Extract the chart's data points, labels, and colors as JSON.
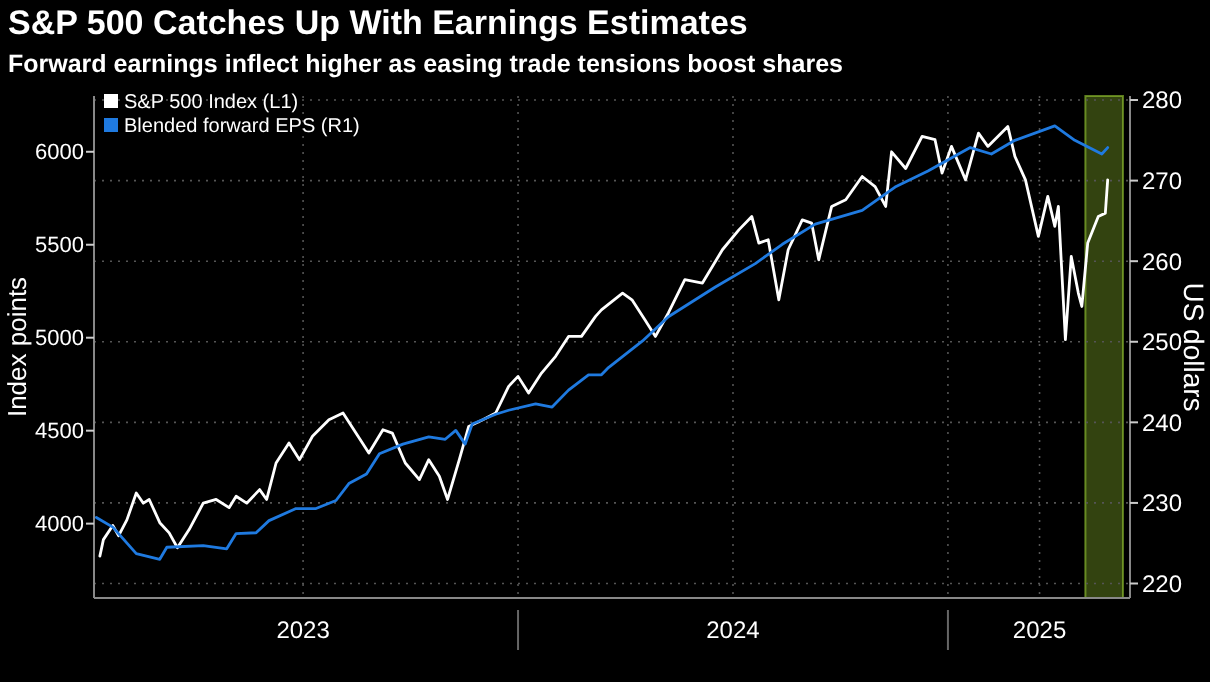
{
  "chart_data": {
    "type": "line",
    "title": "S&P 500 Catches Up With Earnings Estimates",
    "subtitle": "Forward earnings inflect higher as easing trade tensions boost shares",
    "ylabel": "Index points",
    "y2label": "US dollars",
    "xlim": [
      "2023-01-05",
      "2025-06-05"
    ],
    "xticks": [
      {
        "value": "2023-07-02",
        "label": "2023"
      },
      {
        "value": "2024-01-01",
        "label": null
      },
      {
        "value": "2024-07-02",
        "label": "2024"
      },
      {
        "value": "2025-01-01",
        "label": null
      },
      {
        "value": "2025-03-20",
        "label": "2025"
      }
    ],
    "ylim": [
      3600,
      6300
    ],
    "yticks": [
      4000,
      4500,
      5000,
      5500,
      6000
    ],
    "y2lim": [
      218.2,
      280.5
    ],
    "y2ticks": [
      220,
      230,
      240,
      250,
      260,
      270,
      280
    ],
    "grid": true,
    "legend": "top left",
    "line_style": "solid",
    "marker": "none",
    "bands": [
      {
        "axis": "x",
        "from": "2025-04-28",
        "to": "2025-05-30",
        "color": "#5c7a1e"
      }
    ],
    "series": [
      {
        "name": "S&P 500 Index (L1)",
        "color": "#ffffff",
        "x": [
          "2023-01-10",
          "2023-01-13",
          "2023-01-21",
          "2023-01-26",
          "2023-02-02",
          "2023-02-10",
          "2023-02-16",
          "2023-02-21",
          "2023-03-02",
          "2023-03-10",
          "2023-03-17",
          "2023-03-27",
          "2023-04-08",
          "2023-04-19",
          "2023-04-30",
          "2023-05-06",
          "2023-05-15",
          "2023-05-26",
          "2023-06-01",
          "2023-06-09",
          "2023-06-20",
          "2023-06-29",
          "2023-07-10",
          "2023-07-24",
          "2023-08-05",
          "2023-08-16",
          "2023-08-27",
          "2023-09-08",
          "2023-09-16",
          "2023-09-27",
          "2023-10-09",
          "2023-10-17",
          "2023-10-26",
          "2023-11-02",
          "2023-11-12",
          "2023-11-20",
          "2023-12-02",
          "2023-12-13",
          "2023-12-24",
          "2024-01-01",
          "2024-01-10",
          "2024-01-21",
          "2024-02-02",
          "2024-02-13",
          "2024-02-24",
          "2024-03-07",
          "2024-03-12",
          "2024-03-30",
          "2024-04-07",
          "2024-04-18",
          "2024-04-27",
          "2024-05-08",
          "2024-05-22",
          "2024-06-06",
          "2024-06-23",
          "2024-07-07",
          "2024-07-18",
          "2024-07-24",
          "2024-08-01",
          "2024-08-10",
          "2024-08-18",
          "2024-08-30",
          "2024-09-07",
          "2024-09-13",
          "2024-09-24",
          "2024-10-06",
          "2024-10-20",
          "2024-10-31",
          "2024-11-09",
          "2024-11-14",
          "2024-11-26",
          "2024-12-10",
          "2024-12-21",
          "2024-12-27",
          "2025-01-04",
          "2025-01-16",
          "2025-01-27",
          "2025-02-04",
          "2025-02-21",
          "2025-02-27",
          "2025-03-08",
          "2025-03-19",
          "2025-03-27",
          "2025-04-02",
          "2025-04-05",
          "2025-04-11",
          "2025-04-16",
          "2025-04-22",
          "2025-04-25",
          "2025-04-30",
          "2025-05-09",
          "2025-05-15",
          "2025-05-17"
        ],
        "values": [
          3825,
          3914,
          3990,
          3935,
          4020,
          4165,
          4110,
          4130,
          4005,
          3950,
          3870,
          3968,
          4110,
          4130,
          4086,
          4147,
          4110,
          4183,
          4130,
          4326,
          4434,
          4344,
          4470,
          4559,
          4595,
          4487,
          4380,
          4505,
          4487,
          4326,
          4237,
          4344,
          4255,
          4130,
          4344,
          4523,
          4559,
          4595,
          4738,
          4792,
          4702,
          4810,
          4900,
          5007,
          5007,
          5115,
          5150,
          5240,
          5204,
          5097,
          5007,
          5133,
          5312,
          5294,
          5473,
          5580,
          5652,
          5509,
          5527,
          5204,
          5473,
          5634,
          5616,
          5419,
          5706,
          5742,
          5867,
          5813,
          5706,
          6000,
          5910,
          6083,
          6065,
          5885,
          6029,
          5849,
          6100,
          6029,
          6136,
          5975,
          5849,
          5545,
          5760,
          5599,
          5706,
          4990,
          5437,
          5240,
          5168,
          5509,
          5652,
          5670,
          5849
        ]
      },
      {
        "name": "Blended forward EPS (R1)",
        "color": "#1f7ae0",
        "axis": "y2",
        "x": [
          "2023-01-07",
          "2023-01-21",
          "2023-02-10",
          "2023-03-02",
          "2023-03-08",
          "2023-04-08",
          "2023-04-28",
          "2023-05-06",
          "2023-05-23",
          "2023-06-03",
          "2023-06-26",
          "2023-07-13",
          "2023-07-30",
          "2023-08-10",
          "2023-08-25",
          "2023-09-05",
          "2023-09-25",
          "2023-10-17",
          "2023-10-31",
          "2023-11-09",
          "2023-11-17",
          "2023-11-23",
          "2023-12-13",
          "2023-12-24",
          "2024-01-16",
          "2024-01-30",
          "2024-02-13",
          "2024-03-01",
          "2024-03-12",
          "2024-03-18",
          "2024-04-16",
          "2024-05-08",
          "2024-06-17",
          "2024-07-21",
          "2024-08-13",
          "2024-09-10",
          "2024-10-20",
          "2024-11-17",
          "2024-12-15",
          "2025-01-20",
          "2025-02-07",
          "2025-02-27",
          "2025-04-02",
          "2025-04-19",
          "2025-05-12",
          "2025-05-17"
        ],
        "values": [
          228.2,
          227.0,
          223.7,
          223.0,
          224.5,
          224.7,
          224.3,
          226.2,
          226.3,
          227.8,
          229.3,
          229.3,
          230.3,
          232.4,
          233.6,
          236.1,
          237.3,
          238.2,
          237.9,
          239.0,
          237.3,
          239.8,
          241.0,
          241.5,
          242.3,
          241.9,
          244.0,
          245.9,
          245.9,
          246.8,
          250.1,
          253.1,
          256.8,
          259.7,
          262.1,
          264.6,
          266.3,
          269.2,
          271.2,
          274.1,
          273.3,
          275.0,
          276.8,
          275.0,
          273.3,
          274.1
        ]
      }
    ]
  }
}
